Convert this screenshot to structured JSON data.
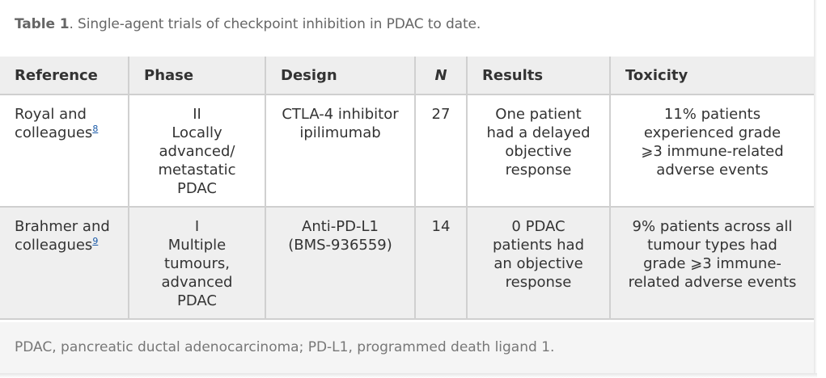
{
  "caption": {
    "label": "Table 1",
    "text": ". Single-agent trials of checkpoint inhibition in PDAC to date."
  },
  "table": {
    "headers": [
      "Reference",
      "Phase",
      "Design",
      "N",
      "Results",
      "Toxicity"
    ],
    "rows": [
      {
        "reference": "Royal and colleagues",
        "ref_num": "8",
        "phase": "II\nLocally advanced/ metastatic PDAC",
        "design": "CTLA-4 inhibitor ipilimumab",
        "n": "27",
        "results": "One patient had a delayed objective response",
        "toxicity": "11% patients experienced grade ⩾3 immune-related adverse events"
      },
      {
        "reference": "Brahmer and colleagues",
        "ref_num": "9",
        "phase": "I\nMultiple tumours, advanced PDAC",
        "design": "Anti-PD-L1 (BMS-936559)",
        "n": "14",
        "results": "0 PDAC patients had an objective response",
        "toxicity": "9% patients across all tumour types had grade ⩾3 immune-related adverse events"
      }
    ]
  },
  "footnote": "PDAC, pancreatic ductal adenocarcinoma; PD-L1, programmed death ligand 1."
}
